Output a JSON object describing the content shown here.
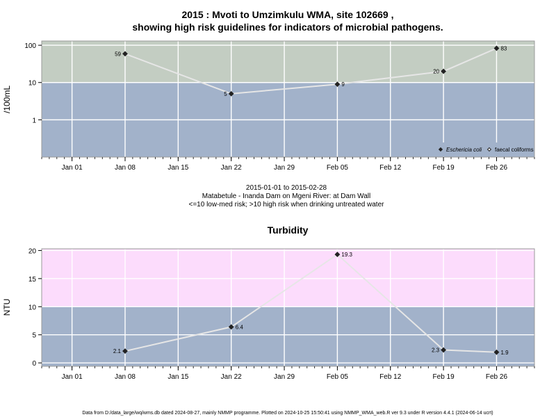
{
  "colors": {
    "plot_background": "#a2b2ca",
    "high_risk_band_top": "#c3cdc2",
    "high_risk_band_bottom": "#fcdcfc",
    "grid": "#ffffff",
    "line": "#e6e6e6",
    "point": "#222222"
  },
  "chart_data": [
    {
      "type": "line",
      "title_lines": [
        "2015 : Mvoti to Umzimkulu WMA, site 102669 ,",
        "showing high risk guidelines for indicators of microbial pathogens."
      ],
      "ylabel": "/100mL",
      "y_scale": "log",
      "ylim": [
        0.1,
        130
      ],
      "yticks": [
        1,
        10,
        100
      ],
      "yticklabels": [
        "1",
        "10",
        "100"
      ],
      "high_risk_threshold": 10,
      "xlim": [
        "2014-12-28",
        "2015-03-03"
      ],
      "xticks": [
        "2015-01-01",
        "2015-01-08",
        "2015-01-15",
        "2015-01-22",
        "2015-01-29",
        "2015-02-05",
        "2015-02-12",
        "2015-02-19",
        "2015-02-26"
      ],
      "xticklabels": [
        "Jan 01",
        "Jan 08",
        "Jan 15",
        "Jan 22",
        "Jan 29",
        "Feb 05",
        "Feb 12",
        "Feb 19",
        "Feb 26"
      ],
      "series": [
        {
          "name": "Eschericia coli",
          "marker": "filled-diamond",
          "points": [
            {
              "x": "2015-01-08",
              "y": 59,
              "label": "59",
              "label_side": "left"
            },
            {
              "x": "2015-01-22",
              "y": 5,
              "label": "5",
              "label_side": "left"
            },
            {
              "x": "2015-02-05",
              "y": 9,
              "label": "9",
              "label_side": "right"
            },
            {
              "x": "2015-02-19",
              "y": 20,
              "label": "20",
              "label_side": "left"
            },
            {
              "x": "2015-02-26",
              "y": 83,
              "label": "83",
              "label_side": "right"
            }
          ]
        },
        {
          "name": "faecal coliforms",
          "marker": "open-diamond",
          "points": []
        }
      ],
      "legend": "bottom-right",
      "grid": true
    },
    {
      "type": "line",
      "title_lines": [
        "Turbidity"
      ],
      "ylabel": "NTU",
      "y_scale": "linear",
      "ylim": [
        -0.6,
        20.3
      ],
      "yticks": [
        0,
        5,
        10,
        15,
        20
      ],
      "yticklabels": [
        "0",
        "5",
        "10",
        "15",
        "20"
      ],
      "high_risk_threshold": 10,
      "xlim": [
        "2014-12-28",
        "2015-03-03"
      ],
      "xticks": [
        "2015-01-01",
        "2015-01-08",
        "2015-01-15",
        "2015-01-22",
        "2015-01-29",
        "2015-02-05",
        "2015-02-12",
        "2015-02-19",
        "2015-02-26"
      ],
      "xticklabels": [
        "Jan 01",
        "Jan 08",
        "Jan 15",
        "Jan 22",
        "Jan 29",
        "Feb 05",
        "Feb 12",
        "Feb 19",
        "Feb 26"
      ],
      "series": [
        {
          "name": "",
          "marker": "filled-diamond",
          "points": [
            {
              "x": "2015-01-08",
              "y": 2.1,
              "label": "2.1",
              "label_side": "left"
            },
            {
              "x": "2015-01-22",
              "y": 6.4,
              "label": "6.4",
              "label_side": "right"
            },
            {
              "x": "2015-02-05",
              "y": 19.3,
              "label": "19.3",
              "label_side": "right"
            },
            {
              "x": "2015-02-19",
              "y": 2.3,
              "label": "2.3",
              "label_side": "left"
            },
            {
              "x": "2015-02-26",
              "y": 1.9,
              "label": "1.9",
              "label_side": "right"
            }
          ]
        }
      ],
      "legend": "none",
      "grid": true
    }
  ],
  "middle_text": [
    "2015-01-01 to 2015-02-28",
    "Matabetule - Inanda Dam on Mgeni River: at Dam Wall",
    "<=10 low-med risk; >10 high risk when drinking untreated water"
  ],
  "footer": "Data from D:/data_large/wq/wms.db dated 2024-08-27, mainly NMMP programme. Plotted on 2024-10-25 15:50:41 using NMMP_WMA_web.R ver 9.3 under R version 4.4.1 (2024-06-14 ucrt)"
}
